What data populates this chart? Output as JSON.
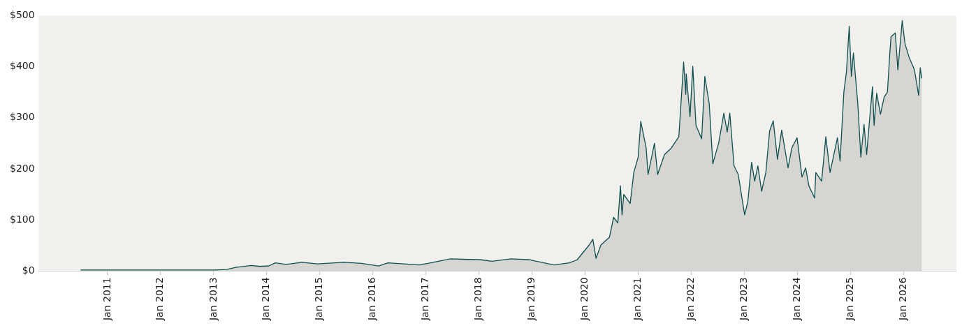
{
  "chart_data": {
    "type": "area",
    "x": [
      "2010-06-29",
      "2010-12-31",
      "2011-06-01",
      "2012-01-01",
      "2012-06-01",
      "2013-01-01",
      "2013-04-01",
      "2013-06-01",
      "2013-09-15",
      "2013-11-15",
      "2014-01-15",
      "2014-03-01",
      "2014-05-15",
      "2014-09-01",
      "2014-12-15",
      "2015-06-15",
      "2015-10-15",
      "2016-02-10",
      "2016-04-15",
      "2016-11-15",
      "2017-01-15",
      "2017-06-20",
      "2017-09-15",
      "2018-01-15",
      "2018-04-01",
      "2018-08-10",
      "2018-12-15",
      "2019-06-01",
      "2019-09-15",
      "2019-11-08",
      "2020-01-30",
      "2020-02-24",
      "2020-03-17",
      "2020-04-20",
      "2020-06-17",
      "2020-07-16",
      "2020-08-14",
      "2020-09-01",
      "2020-09-12",
      "2020-09-24",
      "2020-11-07",
      "2020-12-02",
      "2021-01-01",
      "2021-01-19",
      "2021-02-25",
      "2021-03-10",
      "2021-04-23",
      "2021-05-15",
      "2021-07-01",
      "2021-08-18",
      "2021-10-08",
      "2021-11-10",
      "2021-11-25",
      "2021-11-28",
      "2021-12-24",
      "2022-01-12",
      "2022-02-03",
      "2022-03-14",
      "2022-04-05",
      "2022-05-05",
      "2022-05-30",
      "2022-07-09",
      "2022-08-14",
      "2022-09-06",
      "2022-09-24",
      "2022-10-23",
      "2022-11-21",
      "2023-01-04",
      "2023-01-26",
      "2023-02-21",
      "2023-03-14",
      "2023-04-05",
      "2023-05-01",
      "2023-05-30",
      "2023-06-25",
      "2023-07-20",
      "2023-08-18",
      "2023-09-16",
      "2023-10-30",
      "2023-11-25",
      "2023-12-31",
      "2024-02-03",
      "2024-02-28",
      "2024-03-21",
      "2024-04-30",
      "2024-05-08",
      "2024-06-17",
      "2024-07-16",
      "2024-08-14",
      "2024-10-04",
      "2024-10-22",
      "2024-11-17",
      "2024-12-05",
      "2024-12-24",
      "2025-01-08",
      "2025-01-22",
      "2025-02-21",
      "2025-03-14",
      "2025-04-05",
      "2025-04-23",
      "2025-05-11",
      "2025-06-02",
      "2025-06-13",
      "2025-07-01",
      "2025-07-27",
      "2025-08-22",
      "2025-09-13",
      "2025-10-01",
      "2025-10-08",
      "2025-11-06",
      "2025-11-24",
      "2025-12-24",
      "2026-01-12",
      "2026-02-10",
      "2026-03-18",
      "2026-04-16",
      "2026-04-27",
      "2026-05-08"
    ],
    "series": [
      {
        "color": "#0b4f4f",
        "values": [
          2,
          2,
          2,
          2,
          2,
          2,
          3,
          7,
          11,
          9,
          10,
          16,
          13,
          17,
          14,
          17,
          15,
          10,
          16,
          12,
          15,
          24,
          23,
          22,
          19,
          24,
          22,
          12,
          16,
          22,
          51,
          62,
          25,
          51,
          66,
          105,
          94,
          167,
          110,
          150,
          132,
          193,
          223,
          293,
          241,
          189,
          250,
          189,
          228,
          241,
          263,
          409,
          346,
          386,
          302,
          401,
          285,
          259,
          381,
          328,
          210,
          250,
          309,
          272,
          309,
          206,
          189,
          110,
          136,
          213,
          176,
          206,
          156,
          193,
          274,
          294,
          219,
          276,
          202,
          241,
          261,
          184,
          202,
          167,
          143,
          193,
          176,
          263,
          193,
          261,
          215,
          350,
          390,
          479,
          381,
          427,
          328,
          223,
          287,
          228,
          289,
          361,
          285,
          348,
          307,
          341,
          350,
          433,
          459,
          466,
          394,
          490,
          445,
          418,
          394,
          344,
          398,
          377
        ]
      }
    ],
    "xlim": [
      "2009-09-15",
      "2027-01-01"
    ],
    "xticks": [
      {
        "value": "2011-01-01",
        "label": "Jan 2011"
      },
      {
        "value": "2012-01-01",
        "label": "Jan 2012"
      },
      {
        "value": "2013-01-01",
        "label": "Jan 2013"
      },
      {
        "value": "2014-01-01",
        "label": "Jan 2014"
      },
      {
        "value": "2015-01-01",
        "label": "Jan 2015"
      },
      {
        "value": "2016-01-01",
        "label": "Jan 2016"
      },
      {
        "value": "2017-01-01",
        "label": "Jan 2017"
      },
      {
        "value": "2018-01-01",
        "label": "Jan 2018"
      },
      {
        "value": "2019-01-01",
        "label": "Jan 2019"
      },
      {
        "value": "2020-01-01",
        "label": "Jan 2020"
      },
      {
        "value": "2021-01-01",
        "label": "Jan 2021"
      },
      {
        "value": "2022-01-01",
        "label": "Jan 2022"
      },
      {
        "value": "2023-01-01",
        "label": "Jan 2023"
      },
      {
        "value": "2024-01-01",
        "label": "Jan 2024"
      },
      {
        "value": "2025-01-01",
        "label": "Jan 2025"
      },
      {
        "value": "2026-01-01",
        "label": "Jan 2026"
      }
    ],
    "ylim": [
      0,
      500
    ],
    "yticks": [
      {
        "value": 0,
        "label": "$0"
      },
      {
        "value": 100,
        "label": "$100"
      },
      {
        "value": 200,
        "label": "$200"
      },
      {
        "value": 300,
        "label": "$300"
      },
      {
        "value": 400,
        "label": "$400"
      },
      {
        "value": 500,
        "label": "$500"
      }
    ],
    "grid": false,
    "legend": false,
    "marker": "none"
  }
}
